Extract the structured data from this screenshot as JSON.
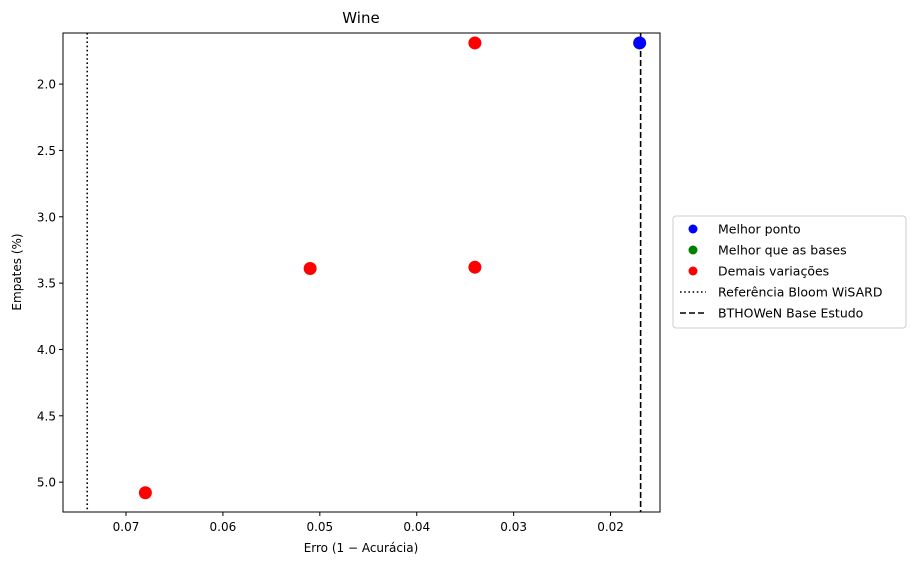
{
  "chart_data": {
    "type": "scatter",
    "title": "Wine",
    "xlabel": "Erro (1 − Acurácia)",
    "ylabel": "Empates (%)",
    "x_inverted": true,
    "y_inverted": true,
    "xlim": [
      0.0765,
      0.0149
    ],
    "ylim": [
      5.225,
      1.615
    ],
    "xticks": [
      0.07,
      0.06,
      0.05,
      0.04,
      0.03,
      0.02
    ],
    "xtick_labels": [
      "0.07",
      "0.06",
      "0.05",
      "0.04",
      "0.03",
      "0.02"
    ],
    "yticks": [
      2.0,
      2.5,
      3.0,
      3.5,
      4.0,
      4.5,
      5.0
    ],
    "ytick_labels": [
      "2.0",
      "2.5",
      "3.0",
      "3.5",
      "4.0",
      "4.5",
      "5.0"
    ],
    "grid": false,
    "legend_position": "outside-right",
    "colors": {
      "best": "#0000ff",
      "better": "#008000",
      "other": "#ff0000",
      "ref_line": "#000000"
    },
    "series": [
      {
        "name": "Melhor ponto",
        "color": "#0000ff",
        "points": [
          [
            0.017,
            1.69
          ]
        ]
      },
      {
        "name": "Melhor que as bases",
        "color": "#008000",
        "points": []
      },
      {
        "name": "Demais variações",
        "color": "#ff0000",
        "points": [
          [
            0.034,
            1.69
          ],
          [
            0.051,
            3.39
          ],
          [
            0.034,
            3.38
          ],
          [
            0.068,
            5.08
          ]
        ]
      }
    ],
    "reference_lines": [
      {
        "name": "Referência Bloom WiSARD",
        "style": "dotted",
        "x": 0.074
      },
      {
        "name": "BTHOWeN Base Estudo",
        "style": "dashed",
        "x": 0.0169
      }
    ]
  }
}
